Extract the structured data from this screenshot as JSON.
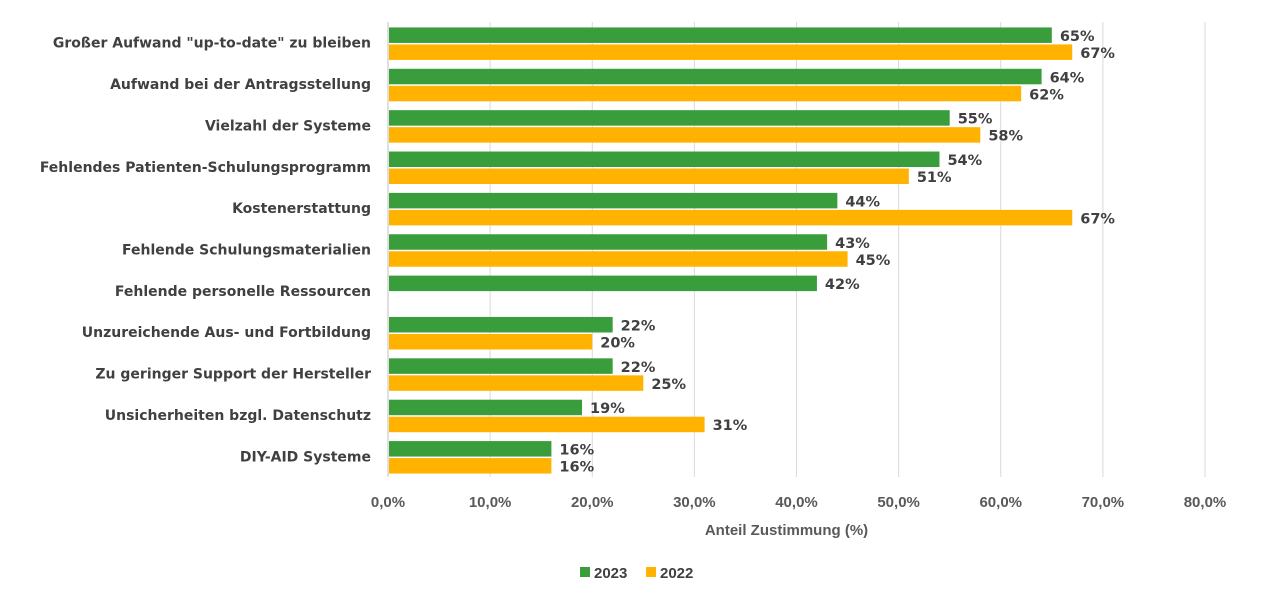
{
  "chart_data": {
    "type": "bar",
    "orientation": "horizontal",
    "title": "",
    "xlabel": "Anteil Zustimmung (%)",
    "ylabel": "",
    "xlim": [
      0,
      80
    ],
    "xticks": [
      0,
      10,
      20,
      30,
      40,
      50,
      60,
      70,
      80
    ],
    "xtick_labels": [
      "0,0%",
      "10,0%",
      "20,0%",
      "30,0%",
      "40,0%",
      "50,0%",
      "60,0%",
      "70,0%",
      "80,0%"
    ],
    "grid": true,
    "legend_position": "bottom",
    "categories": [
      "Großer Aufwand \"up-to-date\" zu bleiben",
      "Aufwand bei der Antragsstellung",
      "Vielzahl der Systeme",
      "Fehlendes Patienten-Schulungsprogramm",
      "Kostenerstattung",
      "Fehlende Schulungsmaterialien",
      "Fehlende personelle Ressourcen",
      "Unzureichende Aus- und Fortbildung",
      "Zu geringer Support der Hersteller",
      "Unsicherheiten bzgl. Datenschutz",
      "DIY-AID Systeme"
    ],
    "series": [
      {
        "name": "2023",
        "color": "#3a9d3c",
        "values": [
          65,
          64,
          55,
          54,
          44,
          43,
          42,
          22,
          22,
          19,
          16
        ],
        "labels": [
          "65%",
          "64%",
          "55%",
          "54%",
          "44%",
          "43%",
          "42%",
          "22%",
          "22%",
          "19%",
          "16%"
        ]
      },
      {
        "name": "2022",
        "color": "#ffb300",
        "values": [
          67,
          62,
          58,
          51,
          67,
          45,
          null,
          20,
          25,
          31,
          16
        ],
        "labels": [
          "67%",
          "62%",
          "58%",
          "51%",
          "67%",
          "45%",
          null,
          "20%",
          "25%",
          "31%",
          "16%"
        ]
      }
    ]
  }
}
